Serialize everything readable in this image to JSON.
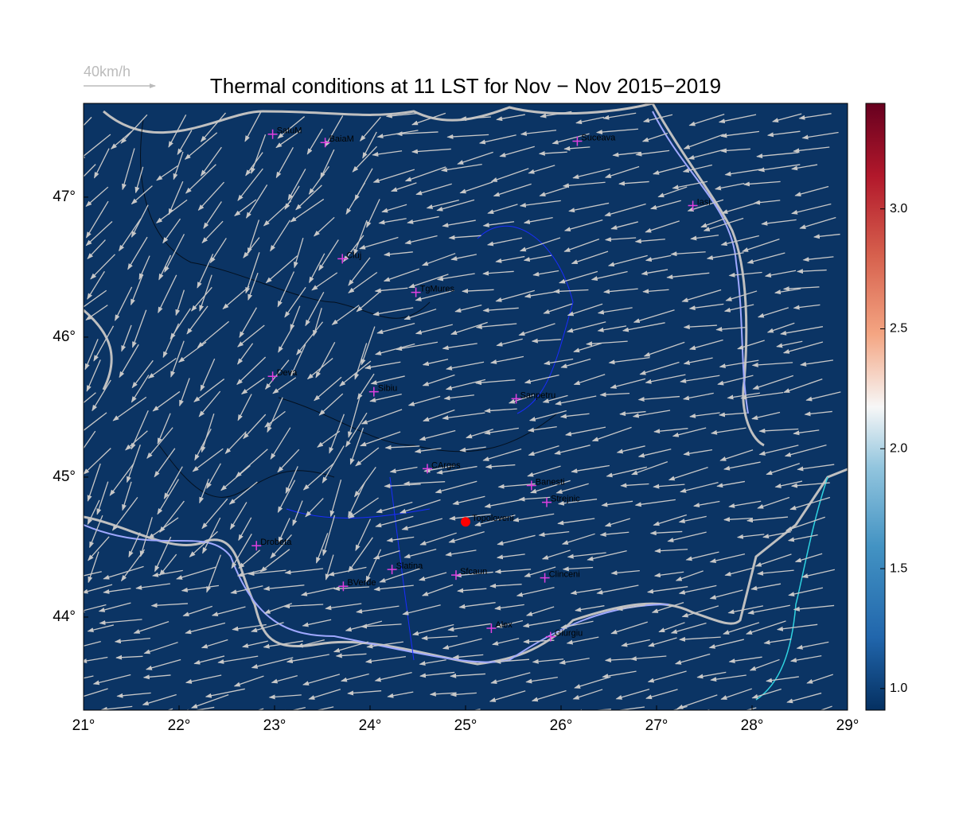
{
  "chart_data": {
    "type": "map",
    "title": "Thermal conditions at 11 LST for Nov − Nov  2015−2019",
    "vector_key": "40km/h",
    "background_color": "#0b3464",
    "xlim": [
      21,
      29
    ],
    "ylim": [
      43.335,
      47.67
    ],
    "xticks": [
      {
        "value": 21,
        "label": "21°"
      },
      {
        "value": 22,
        "label": "22°"
      },
      {
        "value": 23,
        "label": "23°"
      },
      {
        "value": 24,
        "label": "24°"
      },
      {
        "value": 25,
        "label": "25°"
      },
      {
        "value": 26,
        "label": "26°"
      },
      {
        "value": 27,
        "label": "27°"
      },
      {
        "value": 28,
        "label": "28°"
      },
      {
        "value": 29,
        "label": "29°"
      }
    ],
    "yticks": [
      {
        "value": 44,
        "label": "44°"
      },
      {
        "value": 45,
        "label": "45°"
      },
      {
        "value": 46,
        "label": "46°"
      },
      {
        "value": 47,
        "label": "47°"
      }
    ],
    "colorbar": {
      "lim": [
        0.91,
        3.44
      ],
      "ticks": [
        {
          "value": 1,
          "label": "1.0"
        },
        {
          "value": 1.5,
          "label": "1.5"
        },
        {
          "value": 2,
          "label": "2.0"
        },
        {
          "value": 2.5,
          "label": "2.5"
        },
        {
          "value": 3,
          "label": "3.0"
        }
      ]
    },
    "stations": [
      {
        "name": "SatuM",
        "lon": 22.98,
        "lat": 47.45
      },
      {
        "name": "BaiaM",
        "lon": 23.53,
        "lat": 47.39
      },
      {
        "name": "Suceava",
        "lon": 26.17,
        "lat": 47.4
      },
      {
        "name": "Iasi",
        "lon": 27.38,
        "lat": 46.94
      },
      {
        "name": "Cluj",
        "lon": 23.71,
        "lat": 46.56
      },
      {
        "name": "TgMures",
        "lon": 24.48,
        "lat": 46.32
      },
      {
        "name": "Deva",
        "lon": 22.98,
        "lat": 45.72
      },
      {
        "name": "Sibiu",
        "lon": 24.04,
        "lat": 45.61
      },
      {
        "name": "Sanpetru",
        "lon": 25.53,
        "lat": 45.56
      },
      {
        "name": "CArges",
        "lon": 24.6,
        "lat": 45.06
      },
      {
        "name": "Banesti",
        "lon": 25.69,
        "lat": 44.94
      },
      {
        "name": "Strejnic",
        "lon": 25.85,
        "lat": 44.82
      },
      {
        "name": "Drobeta",
        "lon": 22.81,
        "lat": 44.51
      },
      {
        "name": "Slatina",
        "lon": 24.23,
        "lat": 44.34
      },
      {
        "name": "Sfcaun",
        "lon": 24.9,
        "lat": 44.3
      },
      {
        "name": "Clinceni",
        "lon": 25.83,
        "lat": 44.28
      },
      {
        "name": "BVerde",
        "lon": 23.72,
        "lat": 44.22
      },
      {
        "name": "Alex",
        "lon": 25.27,
        "lat": 43.92
      },
      {
        "name": "Giurgiu",
        "lon": 25.89,
        "lat": 43.86
      }
    ],
    "highlight": {
      "name": "Topoloveni",
      "lon": 25.0,
      "lat": 44.68,
      "color": "#ff0000"
    }
  }
}
